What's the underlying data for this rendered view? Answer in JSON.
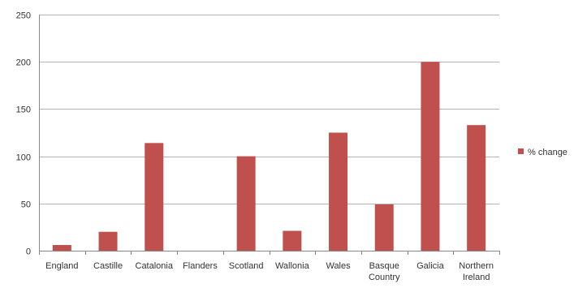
{
  "chart_data": {
    "type": "bar",
    "categories": [
      [
        "England"
      ],
      [
        "Castille"
      ],
      [
        "Catalonia"
      ],
      [
        "Flanders"
      ],
      [
        "Scotland"
      ],
      [
        "Wallonia"
      ],
      [
        "Wales"
      ],
      [
        "Basque",
        "Country"
      ],
      [
        "Galicia"
      ],
      [
        "Northern",
        "Ireland"
      ]
    ],
    "series": [
      {
        "name": "% change",
        "values": [
          6,
          20,
          114,
          0,
          100,
          21,
          125,
          49,
          200,
          133
        ],
        "color": "#c0504d"
      }
    ],
    "ylim": [
      0,
      250
    ],
    "yticks": [
      0,
      50,
      100,
      150,
      200,
      250
    ],
    "grid": true,
    "legend_position": "right",
    "title": "",
    "xlabel": "",
    "ylabel": ""
  }
}
